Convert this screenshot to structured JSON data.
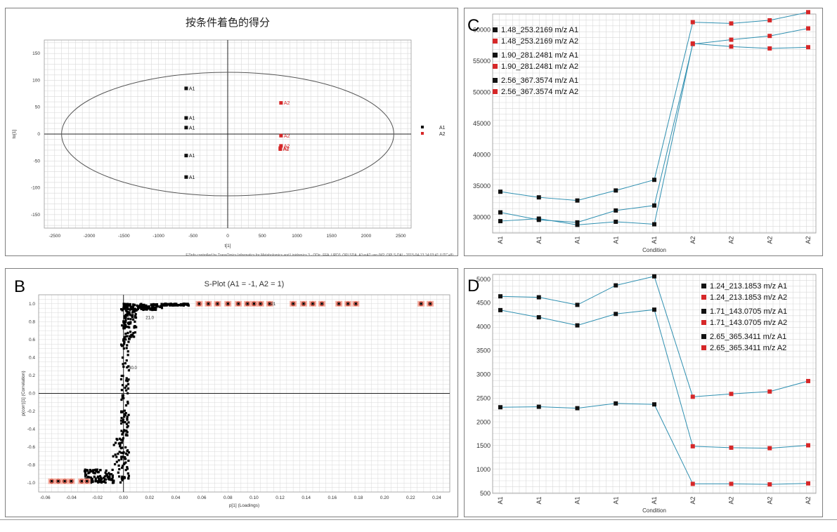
{
  "panels": {
    "A": {
      "title": "按条件着色的得分",
      "xlabel": "t[1]",
      "ylabel": "to[1]",
      "footer": "EZinfo controlled by TransOmics Informatics for Metabolomics and Lipidomics 3 - ODic_FFA_UPD3_OPLSDA_A1vsA2.usp (M2: OPLS-DA) - 2015-04-13 14:03:41 (UTC+8)",
      "xticks": [
        "-2500",
        "-2000",
        "-1500",
        "-1000",
        "-500",
        "0",
        "500",
        "1000",
        "1500",
        "2000",
        "2500"
      ],
      "yticks": [
        "150",
        "100",
        "50",
        "0",
        "-50",
        "-100",
        "-150"
      ],
      "legend": [
        {
          "label": "A1",
          "color": "#111111"
        },
        {
          "label": "A2",
          "color": "#d62728"
        }
      ]
    },
    "B": {
      "letter": "B",
      "title": "S-Plot (A1 = -1, A2 = 1)",
      "xlabel": "p[1] (Loadings)",
      "ylabel": "p(corr)[1] (Correlation)",
      "xticks": [
        "-0.06",
        "-0.04",
        "-0.02",
        "0.00",
        "0.02",
        "0.04",
        "0.06",
        "0.08",
        "0.10",
        "0.12",
        "0.14",
        "0.16",
        "0.18",
        "0.20",
        "0.22",
        "0.24"
      ],
      "yticks": [
        "1.0",
        "0.8",
        "0.6",
        "0.4",
        "0.2",
        "0.0",
        "-0.2",
        "-0.4",
        "-0.6",
        "-0.8",
        "-1.0"
      ],
      "point_labels": [
        "21.0",
        "30.0",
        "0",
        "21"
      ]
    },
    "C": {
      "letter": "C",
      "xlabel": "Condition",
      "yticks": [
        "60000",
        "55000",
        "50000",
        "45000",
        "40000",
        "35000",
        "30000"
      ],
      "legend": [
        {
          "label": "1.48_253.2169 m/z A1",
          "color": "#111111"
        },
        {
          "label": "1.48_253.2169 m/z A2",
          "color": "#d62728"
        },
        {
          "label": "1.90_281.2481 m/z A1",
          "color": "#111111"
        },
        {
          "label": "1.90_281.2481 m/z A2",
          "color": "#d62728"
        },
        {
          "label": "2.56_367.3574 m/z A1",
          "color": "#111111"
        },
        {
          "label": "2.56_367.3574 m/z A2",
          "color": "#d62728"
        }
      ]
    },
    "D": {
      "letter": "D",
      "xlabel": "Condition",
      "yticks": [
        "5000",
        "4500",
        "4000",
        "3500",
        "3000",
        "2500",
        "2000",
        "1500",
        "1000",
        "500"
      ],
      "legend": [
        {
          "label": "1.24_213.1853 m/z A1",
          "color": "#111111"
        },
        {
          "label": "1.24_213.1853 m/z A2",
          "color": "#d62728"
        },
        {
          "label": "1.71_143.0705 m/z A1",
          "color": "#111111"
        },
        {
          "label": "1.71_143.0705 m/z A2",
          "color": "#d62728"
        },
        {
          "label": "2.65_365.3411 m/z A1",
          "color": "#111111"
        },
        {
          "label": "2.65_365.3411 m/z A2",
          "color": "#d62728"
        }
      ]
    }
  },
  "colors": {
    "a1": "#111111",
    "a2": "#d62728",
    "line": "#2e8fb0",
    "grid": "#d9d9d9",
    "s_highlight": "#f4b0a3"
  },
  "chart_data": [
    {
      "type": "scatter",
      "title": "按条件着色的得分",
      "xlabel": "t[1]",
      "ylabel": "to[1]",
      "xlim": [
        -2500,
        2500
      ],
      "ylim": [
        -150,
        150
      ],
      "grid": true,
      "legend_position": "right",
      "series": [
        {
          "name": "A1",
          "points": [
            [
              -600,
              85
            ],
            [
              -600,
              30
            ],
            [
              -600,
              12
            ],
            [
              -600,
              -40
            ],
            [
              -600,
              -80
            ]
          ]
        },
        {
          "name": "A2",
          "points": [
            [
              770,
              58
            ],
            [
              770,
              -3
            ],
            [
              770,
              -22
            ],
            [
              760,
              -26
            ],
            [
              760,
              -28
            ]
          ]
        }
      ],
      "point_labels": [
        "A1",
        "A1",
        "A1",
        "A1",
        "A1",
        "A2",
        "A2",
        "A2",
        "A2",
        "A2"
      ],
      "ellipse": {
        "rx": 2400,
        "ry": 115
      }
    },
    {
      "type": "scatter",
      "title": "S-Plot (A1 = -1, A2 = 1)",
      "xlabel": "p[1] (Loadings)",
      "ylabel": "p(corr)[1] (Correlation)",
      "xlim": [
        -0.06,
        0.24
      ],
      "ylim": [
        -1.0,
        1.0
      ],
      "grid": true,
      "highlighted_points": [
        [
          0.058,
          1.0
        ],
        [
          0.065,
          1.0
        ],
        [
          0.072,
          1.0
        ],
        [
          0.08,
          1.0
        ],
        [
          0.088,
          1.0
        ],
        [
          0.095,
          1.0
        ],
        [
          0.1,
          1.0
        ],
        [
          0.105,
          1.0
        ],
        [
          0.112,
          1.0
        ],
        [
          0.13,
          1.0
        ],
        [
          0.138,
          1.0
        ],
        [
          0.145,
          1.0
        ],
        [
          0.152,
          1.0
        ],
        [
          0.165,
          1.0
        ],
        [
          0.172,
          1.0
        ],
        [
          0.178,
          1.0
        ],
        [
          0.228,
          1.0
        ],
        [
          0.235,
          1.0
        ],
        [
          -0.055,
          -0.98
        ],
        [
          -0.05,
          -0.98
        ],
        [
          -0.045,
          -0.98
        ],
        [
          -0.04,
          -0.98
        ],
        [
          -0.032,
          -0.98
        ],
        [
          -0.028,
          -0.98
        ]
      ]
    },
    {
      "type": "line",
      "xlabel": "Condition",
      "categories": [
        "A1",
        "A1",
        "A1",
        "A1",
        "A1",
        "A2",
        "A2",
        "A2",
        "A2"
      ],
      "ylim": [
        27500,
        62500
      ],
      "grid": true,
      "series": [
        {
          "name": "1.48_253.2169 m/z",
          "values": [
            34100,
            33200,
            32700,
            34300,
            36000,
            61200,
            61000,
            61500,
            62800
          ]
        },
        {
          "name": "1.90_281.2481 m/z",
          "values": [
            30800,
            29600,
            29200,
            31100,
            31900,
            57700,
            58400,
            59000,
            60200
          ]
        },
        {
          "name": "2.56_367.3574 m/z",
          "values": [
            29400,
            29800,
            28800,
            29300,
            28900,
            57800,
            57300,
            57000,
            57200
          ]
        }
      ]
    },
    {
      "type": "line",
      "xlabel": "Condition",
      "categories": [
        "A1",
        "A1",
        "A1",
        "A1",
        "A1",
        "A2",
        "A2",
        "A2",
        "A2"
      ],
      "ylim": [
        500,
        5100
      ],
      "grid": true,
      "series": [
        {
          "name": "1.24_213.1853 m/z",
          "values": [
            4640,
            4620,
            4460,
            4870,
            5060,
            2530,
            2590,
            2640,
            2860
          ]
        },
        {
          "name": "1.71_143.0705 m/z",
          "values": [
            4350,
            4200,
            4030,
            4270,
            4360,
            1490,
            1460,
            1450,
            1510
          ]
        },
        {
          "name": "2.65_365.3411 m/z",
          "values": [
            2310,
            2320,
            2290,
            2390,
            2370,
            700,
            700,
            690,
            710
          ]
        }
      ]
    }
  ]
}
